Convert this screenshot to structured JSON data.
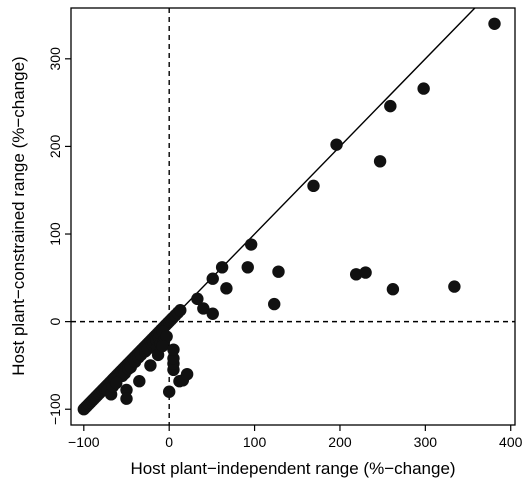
{
  "chart_data": {
    "type": "scatter",
    "title": "",
    "xlabel": "Host plant−independent range (%−change)",
    "ylabel": "Host plant−constrained range (%−change)",
    "xlim": [
      -115,
      405
    ],
    "ylim": [
      -118,
      358
    ],
    "xticks": [
      -100,
      0,
      100,
      200,
      300,
      400
    ],
    "xtick_labels": [
      "−100",
      "0",
      "100",
      "200",
      "300",
      "400"
    ],
    "yticks": [
      -100,
      0,
      100,
      200,
      300
    ],
    "ytick_labels": [
      "−100",
      "0",
      "100",
      "200",
      "300"
    ],
    "grid": false,
    "legend": "none",
    "marker_color": "#111111",
    "reference_lines": [
      {
        "type": "identity",
        "style": "solid",
        "from": [
          -100,
          -100
        ],
        "to": [
          405,
          405
        ]
      },
      {
        "type": "vertical",
        "x": 0,
        "style": "dashed"
      },
      {
        "type": "horizontal",
        "y": 0,
        "style": "dashed"
      }
    ],
    "points": [
      {
        "x": -100,
        "y": -100
      },
      {
        "x": -98,
        "y": -98
      },
      {
        "x": -96,
        "y": -96
      },
      {
        "x": -94,
        "y": -94
      },
      {
        "x": -92,
        "y": -92
      },
      {
        "x": -90,
        "y": -90
      },
      {
        "x": -88,
        "y": -88
      },
      {
        "x": -86,
        "y": -86
      },
      {
        "x": -84,
        "y": -84
      },
      {
        "x": -82,
        "y": -82
      },
      {
        "x": -80,
        "y": -80
      },
      {
        "x": -78,
        "y": -78
      },
      {
        "x": -76,
        "y": -76
      },
      {
        "x": -74,
        "y": -74
      },
      {
        "x": -72,
        "y": -72
      },
      {
        "x": -70,
        "y": -70
      },
      {
        "x": -68,
        "y": -68
      },
      {
        "x": -66,
        "y": -66
      },
      {
        "x": -64,
        "y": -64
      },
      {
        "x": -62,
        "y": -62
      },
      {
        "x": -60,
        "y": -60
      },
      {
        "x": -58,
        "y": -58
      },
      {
        "x": -56,
        "y": -56
      },
      {
        "x": -54,
        "y": -54
      },
      {
        "x": -52,
        "y": -52
      },
      {
        "x": -50,
        "y": -50
      },
      {
        "x": -48,
        "y": -48
      },
      {
        "x": -46,
        "y": -46
      },
      {
        "x": -44,
        "y": -44
      },
      {
        "x": -42,
        "y": -42
      },
      {
        "x": -40,
        "y": -40
      },
      {
        "x": -38,
        "y": -38
      },
      {
        "x": -36,
        "y": -36
      },
      {
        "x": -34,
        "y": -34
      },
      {
        "x": -32,
        "y": -32
      },
      {
        "x": -30,
        "y": -30
      },
      {
        "x": -28,
        "y": -28
      },
      {
        "x": -26,
        "y": -26
      },
      {
        "x": -24,
        "y": -24
      },
      {
        "x": -22,
        "y": -22
      },
      {
        "x": -20,
        "y": -20
      },
      {
        "x": -18,
        "y": -18
      },
      {
        "x": -16,
        "y": -16
      },
      {
        "x": -14,
        "y": -14
      },
      {
        "x": -12,
        "y": -12
      },
      {
        "x": -10,
        "y": -10
      },
      {
        "x": -8,
        "y": -8
      },
      {
        "x": -6,
        "y": -6
      },
      {
        "x": -4,
        "y": -4
      },
      {
        "x": -2,
        "y": -2
      },
      {
        "x": 0,
        "y": 0
      },
      {
        "x": 2,
        "y": 2
      },
      {
        "x": 4,
        "y": 4
      },
      {
        "x": 7,
        "y": 7
      },
      {
        "x": 10,
        "y": 10
      },
      {
        "x": 13,
        "y": 13
      },
      {
        "x": -72,
        "y": -78
      },
      {
        "x": -68,
        "y": -83
      },
      {
        "x": -66,
        "y": -74
      },
      {
        "x": -64,
        "y": -66
      },
      {
        "x": -55,
        "y": -62
      },
      {
        "x": -52,
        "y": -59
      },
      {
        "x": -48,
        "y": -54
      },
      {
        "x": -45,
        "y": -52
      },
      {
        "x": -40,
        "y": -46
      },
      {
        "x": -36,
        "y": -41
      },
      {
        "x": -33,
        "y": -38
      },
      {
        "x": -28,
        "y": -34
      },
      {
        "x": -25,
        "y": -31
      },
      {
        "x": -20,
        "y": -26
      },
      {
        "x": -18,
        "y": -24
      },
      {
        "x": -15,
        "y": -21
      },
      {
        "x": -12,
        "y": -18
      },
      {
        "x": -10,
        "y": -14
      },
      {
        "x": -8,
        "y": -11
      },
      {
        "x": -14,
        "y": -30
      },
      {
        "x": -10,
        "y": -25
      },
      {
        "x": -6,
        "y": -22
      },
      {
        "x": -3,
        "y": -17
      },
      {
        "x": -62,
        "y": -70
      },
      {
        "x": -50,
        "y": -78
      },
      {
        "x": -50,
        "y": -88
      },
      {
        "x": -35,
        "y": -68
      },
      {
        "x": -22,
        "y": -50
      },
      {
        "x": -13,
        "y": -38
      },
      {
        "x": -8,
        "y": -28
      },
      {
        "x": 0,
        "y": -80
      },
      {
        "x": 5,
        "y": -55
      },
      {
        "x": 5,
        "y": -48
      },
      {
        "x": 5,
        "y": -42
      },
      {
        "x": 5,
        "y": -32
      },
      {
        "x": 12,
        "y": -68
      },
      {
        "x": 16,
        "y": -67
      },
      {
        "x": 21,
        "y": -60
      },
      {
        "x": 33,
        "y": 26
      },
      {
        "x": 40,
        "y": 15
      },
      {
        "x": 51,
        "y": 9
      },
      {
        "x": 51,
        "y": 49
      },
      {
        "x": 62,
        "y": 62
      },
      {
        "x": 67,
        "y": 38
      },
      {
        "x": 92,
        "y": 62
      },
      {
        "x": 96,
        "y": 88
      },
      {
        "x": 123,
        "y": 20
      },
      {
        "x": 128,
        "y": 57
      },
      {
        "x": 169,
        "y": 155
      },
      {
        "x": 196,
        "y": 202
      },
      {
        "x": 247,
        "y": 183
      },
      {
        "x": 259,
        "y": 246
      },
      {
        "x": 298,
        "y": 266
      },
      {
        "x": 219,
        "y": 54
      },
      {
        "x": 230,
        "y": 56
      },
      {
        "x": 262,
        "y": 37
      },
      {
        "x": 334,
        "y": 40
      },
      {
        "x": 381,
        "y": 340
      }
    ]
  }
}
